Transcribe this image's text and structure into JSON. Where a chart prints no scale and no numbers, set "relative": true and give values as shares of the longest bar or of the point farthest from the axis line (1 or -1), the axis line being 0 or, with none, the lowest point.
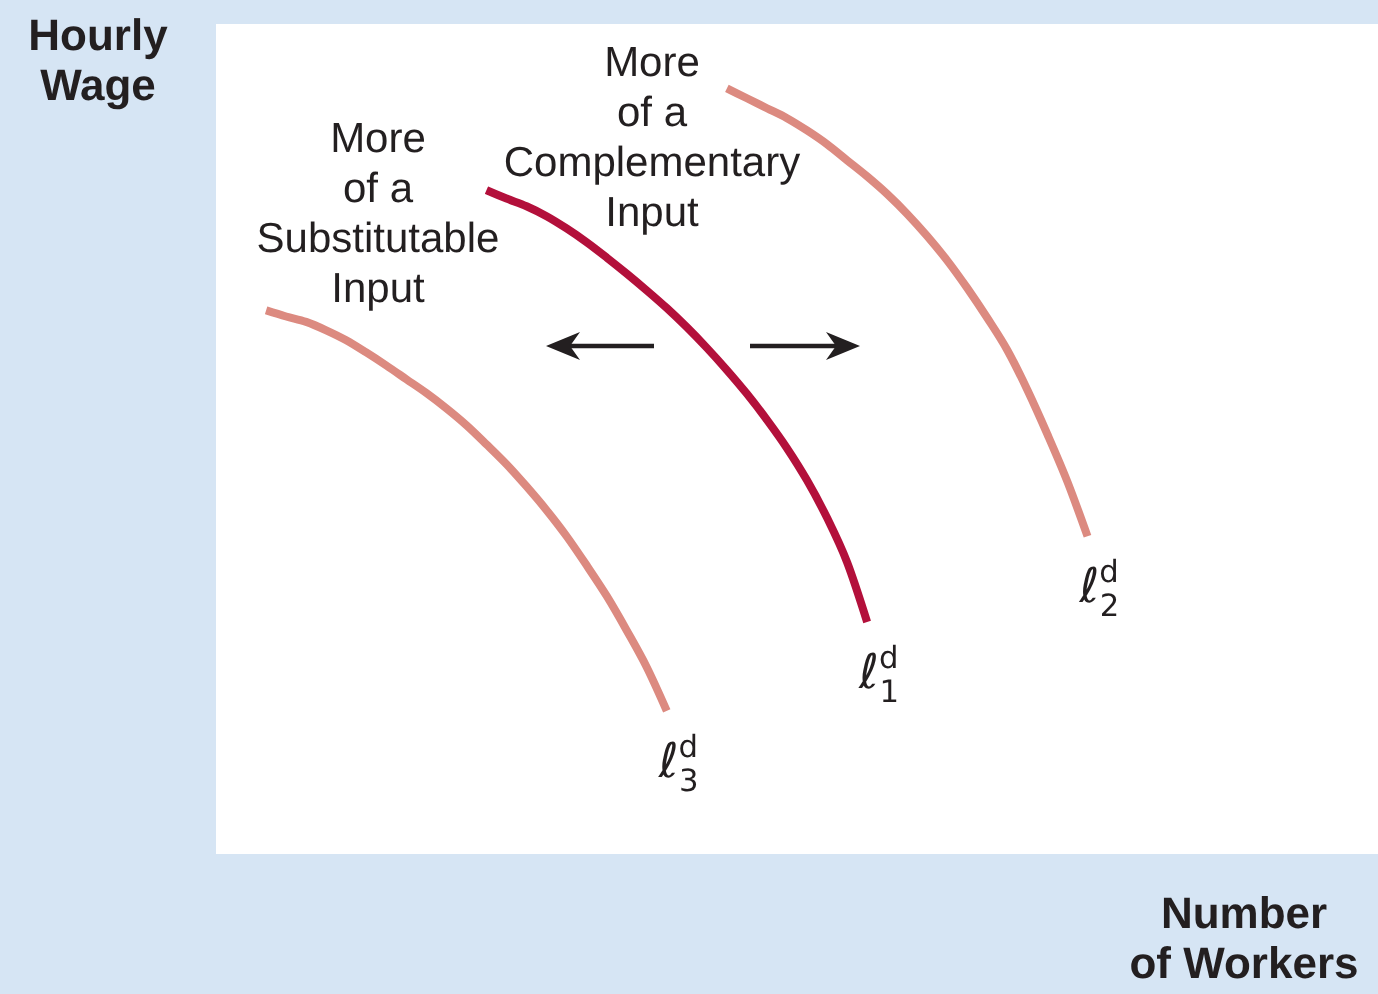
{
  "chart_data": {
    "type": "line",
    "xlabel": "Number\nof Workers",
    "ylabel": "Hourly\nWage",
    "relative": true,
    "marker": "none",
    "line_style": "solid",
    "categories": [
      null,
      null,
      null,
      null,
      null,
      null,
      null,
      null,
      null,
      null,
      null,
      null,
      null,
      null,
      null,
      null,
      null,
      null,
      null,
      null,
      null,
      null,
      null,
      null,
      null,
      null,
      null,
      null,
      null,
      null,
      null,
      null,
      null,
      null,
      null,
      null,
      null,
      null,
      null,
      null,
      null,
      null,
      null,
      null,
      null,
      null,
      null,
      null,
      null,
      null,
      null,
      null,
      null,
      null,
      null,
      null,
      null,
      null
    ],
    "series": [
      {
        "name": "ℓ$^{d}$$_{1}$",
        "color": "#b3103b",
        "values": [
          null,
          null,
          null,
          null,
          null,
          null,
          null,
          null,
          null,
          null,
          null,
          null,
          null,
          0.867,
          0.856,
          0.846,
          0.833,
          0.817,
          0.799,
          0.779,
          0.758,
          0.736,
          0.713,
          0.688,
          0.661,
          0.632,
          0.601,
          0.567,
          0.53,
          0.488,
          0.439,
          0.381,
          0.303,
          null,
          null,
          null,
          null,
          null,
          null,
          null,
          null,
          null,
          null,
          null,
          null,
          null,
          null,
          null,
          null,
          null,
          null,
          null,
          null,
          null,
          null,
          null,
          null,
          null
        ]
      },
      {
        "name": "ℓ$^{d}$$_{2}$",
        "color": "#dc8a80",
        "values": [
          null,
          null,
          null,
          null,
          null,
          null,
          null,
          null,
          null,
          null,
          null,
          null,
          null,
          null,
          null,
          null,
          null,
          null,
          null,
          null,
          null,
          null,
          null,
          null,
          null,
          1,
          0.987,
          0.974,
          0.961,
          0.945,
          0.927,
          0.906,
          0.885,
          0.862,
          0.836,
          0.807,
          0.775,
          0.739,
          0.7,
          0.658,
          0.606,
          0.548,
          0.486,
          0.415,
          null,
          null,
          null,
          null,
          null,
          null,
          null,
          null,
          null,
          null,
          null,
          null,
          null,
          null
        ]
      },
      {
        "name": "ℓ$^{d}$$_{3}$",
        "color": "#dc8a80",
        "values": [
          null,
          null,
          0.71,
          0.702,
          0.695,
          0.684,
          0.671,
          0.655,
          0.638,
          0.62,
          0.602,
          0.582,
          0.56,
          0.535,
          0.509,
          0.48,
          0.449,
          0.415,
          0.377,
          0.337,
          0.292,
          0.244,
          0.187,
          null,
          null,
          null,
          null,
          null,
          null,
          null,
          null,
          null,
          null,
          null,
          null,
          null,
          null,
          null,
          null,
          null,
          null,
          null,
          null,
          null,
          null,
          null,
          null,
          null,
          null,
          null,
          null,
          null,
          null,
          null,
          null,
          null,
          null,
          null
        ]
      }
    ],
    "annotations": [
      "More\nof a\nSubstitutable\nInput",
      "More\nof a\nComplementary\nInput"
    ]
  }
}
